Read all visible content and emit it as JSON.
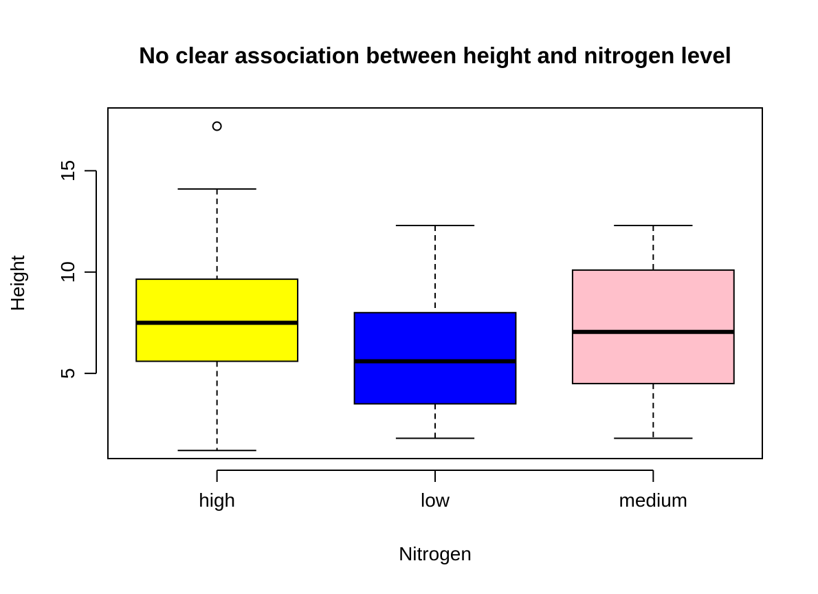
{
  "chart_data": {
    "type": "boxplot",
    "title": "No clear association between height and nitrogen level",
    "xlabel": "Nitrogen",
    "ylabel": "Height",
    "ylim": [
      0.8,
      18.1
    ],
    "yticks": [
      5,
      10,
      15
    ],
    "grid": false,
    "categories": [
      "high",
      "low",
      "medium"
    ],
    "boxes": [
      {
        "category": "high",
        "color": "#FFFF00",
        "whisker_low": 1.2,
        "q1": 5.6,
        "median": 7.5,
        "q3": 9.65,
        "whisker_high": 14.1,
        "outliers": [
          17.2
        ]
      },
      {
        "category": "low",
        "color": "#0000FF",
        "whisker_low": 1.8,
        "q1": 3.5,
        "median": 5.6,
        "q3": 8.0,
        "whisker_high": 12.3,
        "outliers": []
      },
      {
        "category": "medium",
        "color": "#FFC0CB",
        "whisker_low": 1.8,
        "q1": 4.5,
        "median": 7.05,
        "q3": 10.1,
        "whisker_high": 12.3,
        "outliers": []
      }
    ]
  }
}
